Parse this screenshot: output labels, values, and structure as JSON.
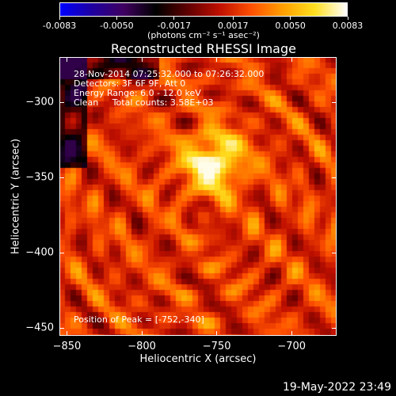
{
  "colorbar": {
    "tick_labels": [
      "-0.0083",
      "-0.0050",
      "-0.0017",
      "0.0017",
      "0.0050",
      "0.0083"
    ],
    "units_label": "(photons cm⁻² s⁻¹ asec⁻²)",
    "range": [
      -0.0083,
      0.0083
    ]
  },
  "chart_data": {
    "type": "heatmap",
    "title": "Reconstructed RHESSI Image",
    "xlabel": "Heliocentric X (arcsec)",
    "ylabel": "Heliocentric Y (arcsec)",
    "xlim": [
      -855,
      -670
    ],
    "ylim": [
      -455,
      -270
    ],
    "x_ticks": [
      -850,
      -800,
      -750,
      -700
    ],
    "y_ticks": [
      -300,
      -350,
      -400,
      -450
    ],
    "x_tick_labels": [
      "−850",
      "−800",
      "−750",
      "−700"
    ],
    "y_tick_labels": [
      "−300",
      "−350",
      "−400",
      "−450"
    ],
    "grid": false,
    "peak": [
      -752,
      -340
    ],
    "annotations": [
      "28-Nov-2014 07:25:32.000 to 07:26:32.000",
      "Detectors: 3F 6F 9F, Att 0",
      "Energy Range: 6.0 - 12.0 keV",
      "Clean     Total counts: 3.58E+03"
    ],
    "peak_label": "Position of Peak = [-752,-340]",
    "colormap": [
      "#0000ff",
      "#2000a0",
      "#400060",
      "#000000",
      "#600000",
      "#c01000",
      "#ff5000",
      "#ffa000",
      "#ffe020",
      "#ffffff"
    ]
  },
  "footer": {
    "timestamp": "19-May-2022 23:49"
  }
}
